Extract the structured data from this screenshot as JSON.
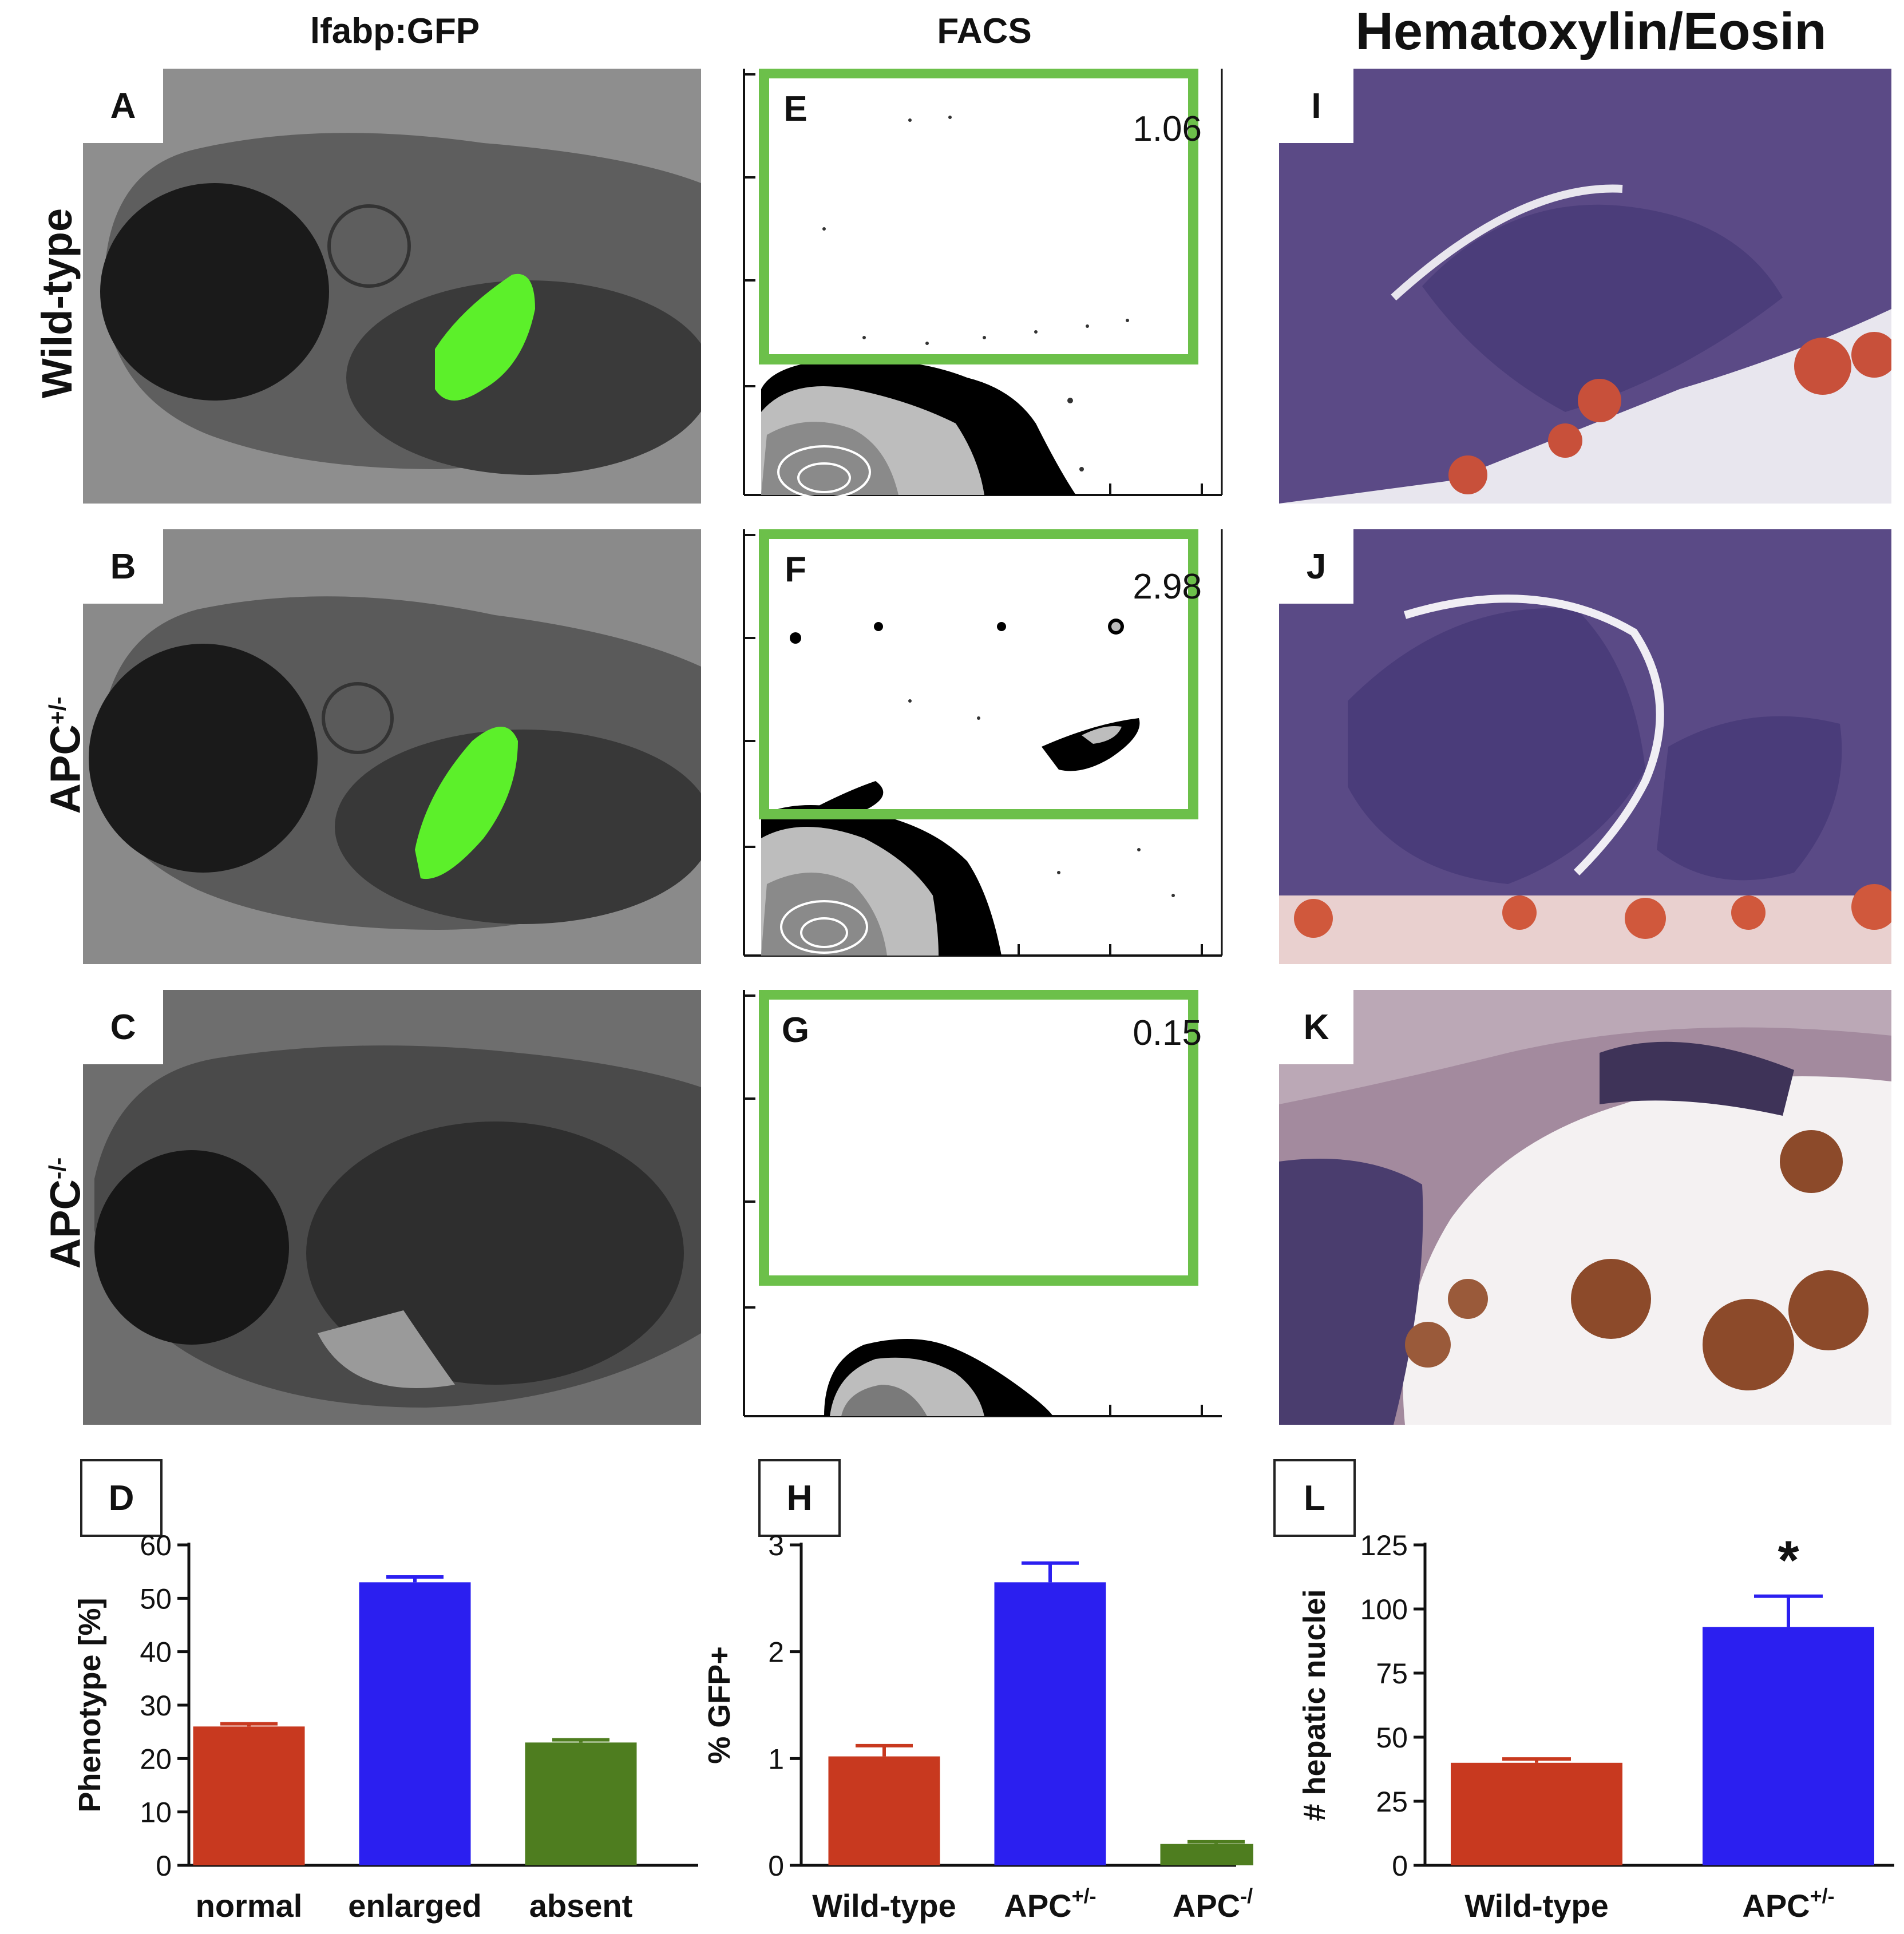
{
  "columns": {
    "col1": "lfabp:GFP",
    "col2": "FACS",
    "col3": "Hematoxylin/Eosin"
  },
  "rows": {
    "row1": "Wild-type",
    "row2_base": "APC",
    "row2_sup": "+/-",
    "row3_base": "APC",
    "row3_sup": "-/-"
  },
  "panel_letters": {
    "A": "A",
    "B": "B",
    "C": "C",
    "D": "D",
    "E": "E",
    "F": "F",
    "G": "G",
    "H": "H",
    "I": "I",
    "J": "J",
    "K": "K",
    "L": "L"
  },
  "facs_gates": {
    "E": "1.06",
    "F": "2.98",
    "G": "0.15"
  },
  "colors": {
    "red": "#c8391f",
    "blue": "#2b1ff0",
    "green": "#4e7d1f",
    "gate_green": "#6cc04a",
    "gfp": "#5cf02a"
  },
  "chart_data": [
    {
      "panel": "D",
      "type": "bar",
      "categories": [
        "normal",
        "enlarged",
        "absent"
      ],
      "values": [
        26,
        53,
        23
      ],
      "errors": [
        0.5,
        1.0,
        0.5
      ],
      "ylabel": "Phenotype [%]",
      "ylim": [
        0,
        60
      ],
      "yticks": [
        0,
        10,
        20,
        30,
        40,
        50,
        60
      ],
      "bar_colors": [
        "#c8391f",
        "#2b1ff0",
        "#4e7d1f"
      ],
      "annotations": []
    },
    {
      "panel": "H",
      "type": "bar",
      "categories": [
        "Wild-type",
        "APC+/-",
        "APC-/-"
      ],
      "category_display": [
        {
          "base": "Wild-type",
          "sup": ""
        },
        {
          "base": "APC",
          "sup": "+/-"
        },
        {
          "base": "APC",
          "sup": "-/-"
        }
      ],
      "values": [
        1.02,
        2.65,
        0.2
      ],
      "errors": [
        0.1,
        0.18,
        0.02
      ],
      "ylabel": "% GFP+",
      "ylim": [
        0,
        3
      ],
      "yticks": [
        0,
        1,
        2,
        3
      ],
      "bar_colors": [
        "#c8391f",
        "#2b1ff0",
        "#4e7d1f"
      ],
      "annotations": [
        {
          "category": "APC+/-",
          "text": "*"
        }
      ]
    },
    {
      "panel": "L",
      "type": "bar",
      "categories": [
        "Wild-type",
        "APC+/-"
      ],
      "category_display": [
        {
          "base": "Wild-type",
          "sup": ""
        },
        {
          "base": "APC",
          "sup": "+/-"
        }
      ],
      "values": [
        40,
        93
      ],
      "errors": [
        1.5,
        12
      ],
      "ylabel": "# hepatic nuclei",
      "ylim": [
        0,
        125
      ],
      "yticks": [
        0,
        25,
        50,
        75,
        100,
        125
      ],
      "bar_colors": [
        "#c8391f",
        "#2b1ff0"
      ],
      "annotations": [
        {
          "category": "APC+/-",
          "text": "*"
        }
      ]
    }
  ]
}
